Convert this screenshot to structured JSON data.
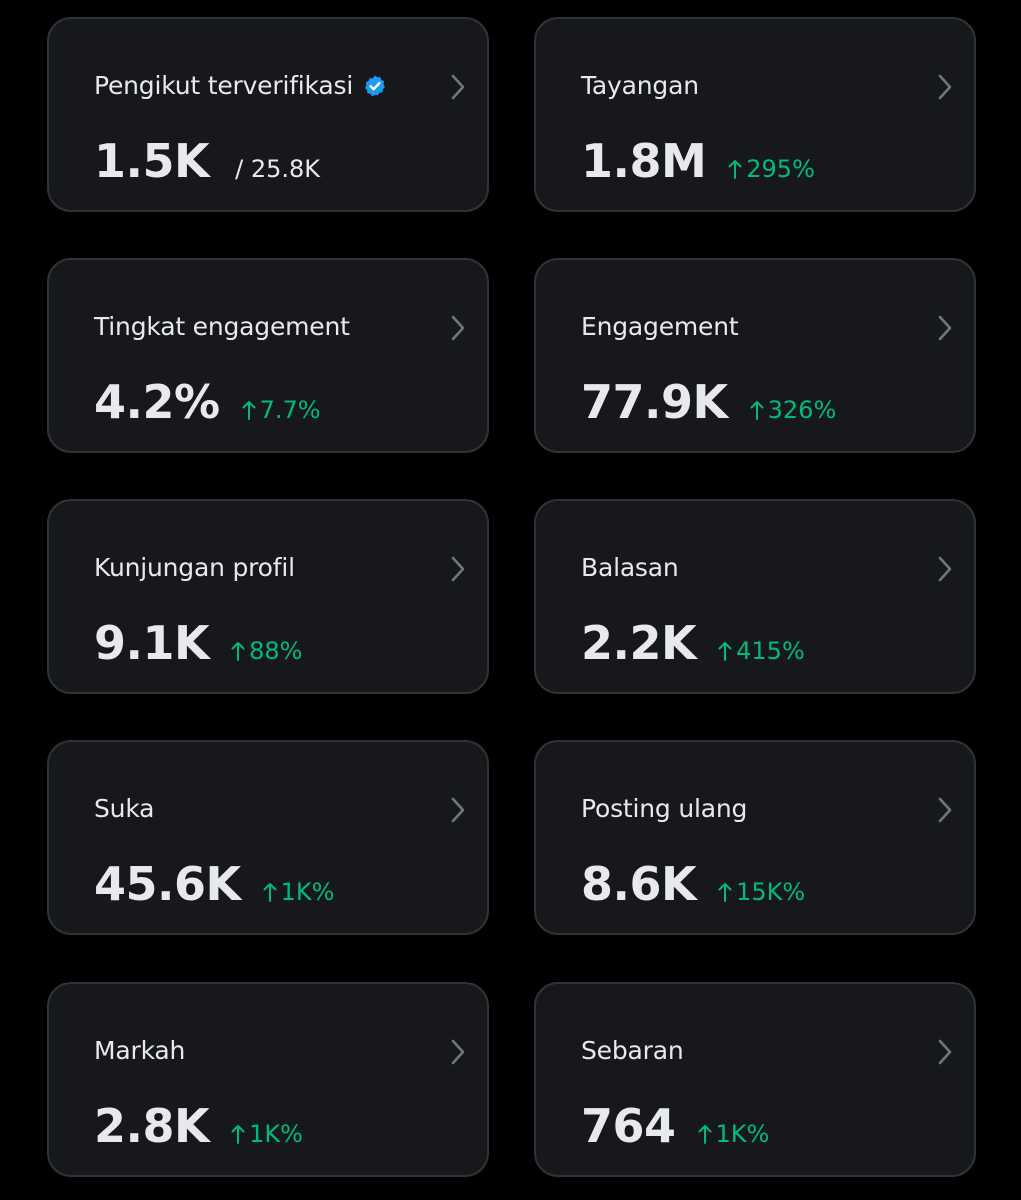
{
  "colors": {
    "background": "#000000",
    "card_background": "#16181c",
    "card_border": "#2f3336",
    "text": "#e7e9ea",
    "muted_icon": "#71767b",
    "positive": "#00ba7c",
    "verified": "#1d9bf0"
  },
  "cards": [
    {
      "label": "Pengikut terverifikasi",
      "value": "1.5K",
      "sub": "/ 25.8K",
      "verified_icon": "verified-badge-icon"
    },
    {
      "label": "Tayangan",
      "value": "1.8M",
      "change": "295%"
    },
    {
      "label": "Tingkat engagement",
      "value": "4.2%",
      "change": "7.7%"
    },
    {
      "label": "Engagement",
      "value": "77.9K",
      "change": "326%"
    },
    {
      "label": "Kunjungan profil",
      "value": "9.1K",
      "change": "88%"
    },
    {
      "label": "Balasan",
      "value": "2.2K",
      "change": "415%"
    },
    {
      "label": "Suka",
      "value": "45.6K",
      "change": "1K%"
    },
    {
      "label": "Posting ulang",
      "value": "8.6K",
      "change": "15K%"
    },
    {
      "label": "Markah",
      "value": "2.8K",
      "change": "1K%"
    },
    {
      "label": "Sebaran",
      "value": "764",
      "change": "1K%"
    }
  ]
}
